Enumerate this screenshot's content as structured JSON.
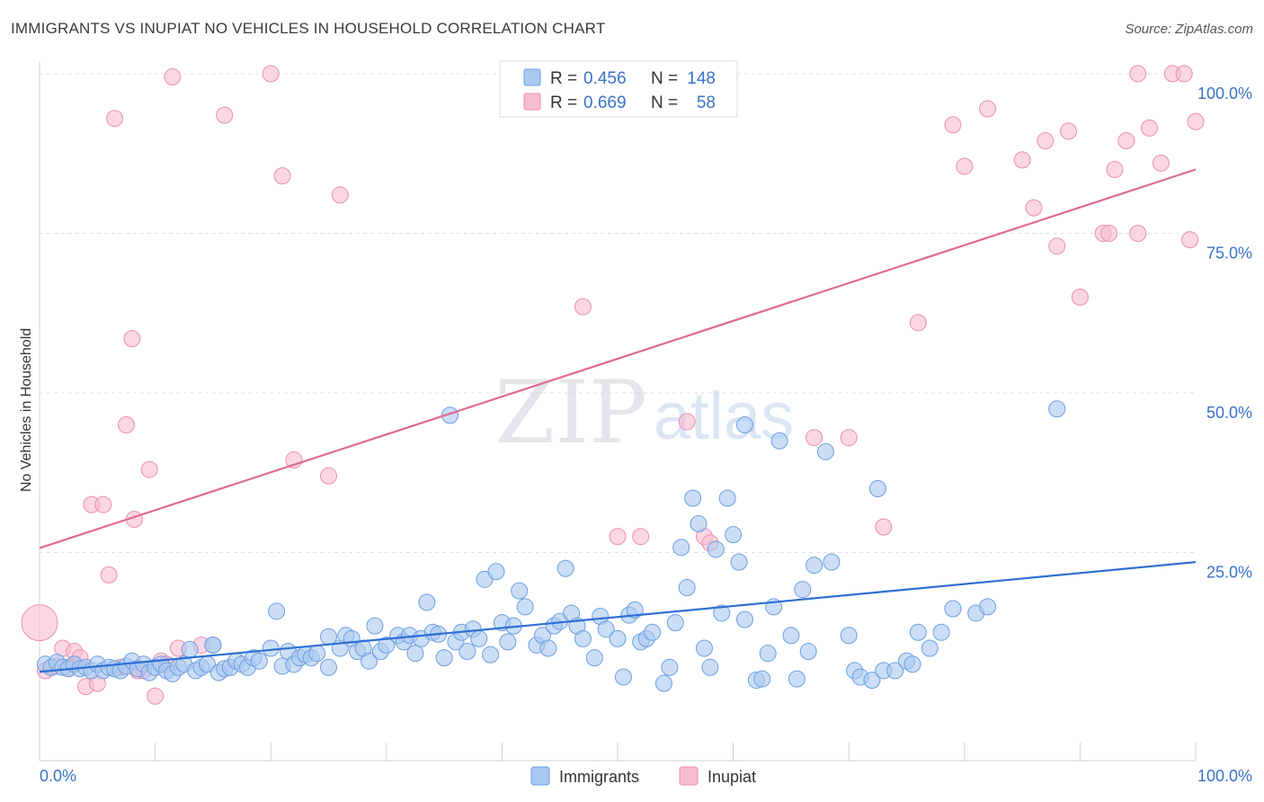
{
  "title": "IMMIGRANTS VS INUPIAT NO VEHICLES IN HOUSEHOLD CORRELATION CHART",
  "source": "Source: ZipAtlas.com",
  "watermark": {
    "zip": "ZIP",
    "atlas": "atlas"
  },
  "colors": {
    "blue_fill": "#a8c8f0",
    "blue_stroke": "#6d9fe0",
    "blue_line": "#2e6fd4",
    "pink_fill": "#f6bcd0",
    "pink_stroke": "#ec8fb0",
    "pink_line": "#e06a93",
    "axis_text": "#3a72c8",
    "grid": "#dde1e8"
  },
  "legend": {
    "rows": [
      {
        "r_label": "R =",
        "r_value": "0.456",
        "n_label": "N =",
        "n_value": "148",
        "series": "blue"
      },
      {
        "r_label": "R =",
        "r_value": "0.669",
        "n_label": "N =",
        "n_value": "58",
        "series": "pink"
      }
    ]
  },
  "bottom_legend": [
    "Immigrants",
    "Inupiat"
  ],
  "chart_data": {
    "type": "scatter",
    "xlabel": "",
    "ylabel": "No Vehicles in Household",
    "xlim": [
      0,
      100
    ],
    "ylim": [
      0,
      100
    ],
    "x_tick_labels": {
      "left": "0.0%",
      "right": "100.0%"
    },
    "y_tick_labels": [
      "25.0%",
      "50.0%",
      "75.0%",
      "100.0%"
    ],
    "y_ticks": [
      25,
      50,
      75,
      100
    ],
    "series": [
      {
        "name": "Immigrants",
        "color": "blue",
        "trend": {
          "x0": 0,
          "y0": 6.3,
          "x1": 100,
          "y1": 23.5
        },
        "points": [
          [
            0.5,
            7.5
          ],
          [
            1,
            7
          ],
          [
            1.5,
            7.8
          ],
          [
            2,
            7
          ],
          [
            2.5,
            6.8
          ],
          [
            3,
            7.5
          ],
          [
            3.5,
            6.8
          ],
          [
            4,
            7
          ],
          [
            4.5,
            6.5
          ],
          [
            5,
            7.5
          ],
          [
            5.5,
            6.5
          ],
          [
            6,
            7
          ],
          [
            6.5,
            6.8
          ],
          [
            7,
            6.5
          ],
          [
            7.5,
            7.2
          ],
          [
            8,
            8
          ],
          [
            8.5,
            6.8
          ],
          [
            9,
            7.5
          ],
          [
            9.5,
            6.2
          ],
          [
            10,
            7
          ],
          [
            10.5,
            7.5
          ],
          [
            11,
            6.5
          ],
          [
            11.5,
            6
          ],
          [
            12,
            7
          ],
          [
            12.5,
            7.5
          ],
          [
            13,
            9.8
          ],
          [
            13.5,
            6.5
          ],
          [
            14,
            7
          ],
          [
            14.5,
            7.5
          ],
          [
            15,
            10.5
          ],
          [
            15.5,
            6.2
          ],
          [
            16,
            6.8
          ],
          [
            16.5,
            7
          ],
          [
            17,
            8
          ],
          [
            17.5,
            7.5
          ],
          [
            18,
            7
          ],
          [
            18.5,
            8.5
          ],
          [
            19,
            8
          ],
          [
            20,
            10
          ],
          [
            20.5,
            15.8
          ],
          [
            21,
            7.2
          ],
          [
            21.5,
            9.5
          ],
          [
            22,
            7.5
          ],
          [
            22.5,
            8.5
          ],
          [
            23,
            9
          ],
          [
            23.5,
            8.5
          ],
          [
            24,
            9.2
          ],
          [
            25,
            11.8
          ],
          [
            25,
            7
          ],
          [
            26,
            10
          ],
          [
            26.5,
            12
          ],
          [
            27,
            11.5
          ],
          [
            27.5,
            9.5
          ],
          [
            28,
            10
          ],
          [
            28.5,
            8
          ],
          [
            29,
            13.5
          ],
          [
            29.5,
            9.5
          ],
          [
            30,
            10.5
          ],
          [
            31,
            12
          ],
          [
            31.5,
            11
          ],
          [
            32,
            12
          ],
          [
            32.5,
            9.2
          ],
          [
            33,
            11.5
          ],
          [
            33.5,
            17.2
          ],
          [
            34,
            12.5
          ],
          [
            34.5,
            12.2
          ],
          [
            35,
            8.5
          ],
          [
            36,
            11
          ],
          [
            36.5,
            12.5
          ],
          [
            37,
            9.5
          ],
          [
            37.5,
            13
          ],
          [
            38,
            11.5
          ],
          [
            38.5,
            20.8
          ],
          [
            39,
            9
          ],
          [
            39.5,
            22
          ],
          [
            40,
            14
          ],
          [
            40.5,
            11
          ],
          [
            41,
            13.5
          ],
          [
            41.5,
            19
          ],
          [
            42,
            16.5
          ],
          [
            43,
            10.5
          ],
          [
            43.5,
            12
          ],
          [
            44,
            10
          ],
          [
            44.5,
            13.5
          ],
          [
            45,
            14.2
          ],
          [
            45.5,
            22.5
          ],
          [
            46,
            15.5
          ],
          [
            46.5,
            13.5
          ],
          [
            47,
            11.5
          ],
          [
            48,
            8.5
          ],
          [
            48.5,
            15
          ],
          [
            49,
            13
          ],
          [
            50,
            11.5
          ],
          [
            50.5,
            5.5
          ],
          [
            51,
            15.2
          ],
          [
            51.5,
            16
          ],
          [
            52,
            11
          ],
          [
            52.5,
            11.5
          ],
          [
            53,
            12.5
          ],
          [
            54,
            4.5
          ],
          [
            54.5,
            7
          ],
          [
            55,
            14
          ],
          [
            55.5,
            25.8
          ],
          [
            56,
            19.5
          ],
          [
            56.5,
            33.5
          ],
          [
            57,
            29.5
          ],
          [
            57.5,
            10
          ],
          [
            58,
            7
          ],
          [
            58.5,
            25.5
          ],
          [
            59,
            15.5
          ],
          [
            59.5,
            33.5
          ],
          [
            60,
            27.8
          ],
          [
            60.5,
            23.5
          ],
          [
            61,
            14.5
          ],
          [
            62,
            5
          ],
          [
            62.5,
            5.2
          ],
          [
            63,
            9.2
          ],
          [
            63.5,
            16.5
          ],
          [
            64,
            42.5
          ],
          [
            65,
            12
          ],
          [
            65.5,
            5.2
          ],
          [
            66,
            19.2
          ],
          [
            66.5,
            9.5
          ],
          [
            67,
            23
          ],
          [
            68,
            40.8
          ],
          [
            68.5,
            23.5
          ],
          [
            70,
            12
          ],
          [
            70.5,
            6.5
          ],
          [
            71,
            5.5
          ],
          [
            72,
            5
          ],
          [
            72.5,
            35
          ],
          [
            73,
            6.5
          ],
          [
            74,
            6.5
          ],
          [
            75,
            8
          ],
          [
            75.5,
            7.5
          ],
          [
            76,
            12.5
          ],
          [
            77,
            10
          ],
          [
            78,
            12.5
          ],
          [
            79,
            16.2
          ],
          [
            81,
            15.5
          ],
          [
            82,
            16.5
          ],
          [
            35.5,
            46.5
          ],
          [
            61,
            45
          ],
          [
            88,
            47.5
          ],
          [
            15,
            10.5
          ]
        ]
      },
      {
        "name": "Inupiat",
        "color": "pink",
        "trend": {
          "x0": 0,
          "y0": 25.7,
          "x1": 100,
          "y1": 85
        },
        "points": [
          [
            0,
            14
          ],
          [
            0.5,
            6.5
          ],
          [
            1,
            7
          ],
          [
            1.5,
            7.2
          ],
          [
            2,
            10
          ],
          [
            2.5,
            7
          ],
          [
            3,
            9.5
          ],
          [
            3.5,
            8.5
          ],
          [
            4,
            4
          ],
          [
            4.5,
            32.5
          ],
          [
            5,
            4.5
          ],
          [
            5.5,
            32.5
          ],
          [
            6,
            21.5
          ],
          [
            6.5,
            93
          ],
          [
            7,
            7
          ],
          [
            7.5,
            45
          ],
          [
            8,
            58.5
          ],
          [
            8.2,
            30.2
          ],
          [
            8.5,
            6.5
          ],
          [
            9,
            6.5
          ],
          [
            9.5,
            38
          ],
          [
            10,
            2.5
          ],
          [
            10.5,
            8
          ],
          [
            11,
            7.5
          ],
          [
            11.5,
            99.5
          ],
          [
            12,
            10
          ],
          [
            14,
            10.5
          ],
          [
            16,
            93.5
          ],
          [
            20,
            100
          ],
          [
            21,
            84
          ],
          [
            22,
            39.5
          ],
          [
            25,
            37
          ],
          [
            26,
            81
          ],
          [
            47,
            63.5
          ],
          [
            50,
            27.5
          ],
          [
            52,
            27.5
          ],
          [
            56,
            45.5
          ],
          [
            57.5,
            27.5
          ],
          [
            58,
            26.5
          ],
          [
            67,
            43
          ],
          [
            70,
            43
          ],
          [
            73,
            29
          ],
          [
            76,
            61
          ],
          [
            79,
            92
          ],
          [
            80,
            85.5
          ],
          [
            82,
            94.5
          ],
          [
            85,
            86.5
          ],
          [
            86,
            79
          ],
          [
            87,
            89.5
          ],
          [
            88,
            73
          ],
          [
            89,
            91
          ],
          [
            90,
            65
          ],
          [
            92,
            75
          ],
          [
            92.5,
            75
          ],
          [
            93,
            85
          ],
          [
            94,
            89.5
          ],
          [
            95,
            75
          ],
          [
            95,
            100
          ],
          [
            96,
            91.5
          ],
          [
            97,
            86
          ],
          [
            98,
            100
          ],
          [
            99,
            100
          ],
          [
            99.5,
            74
          ],
          [
            100,
            92.5
          ]
        ]
      }
    ]
  }
}
